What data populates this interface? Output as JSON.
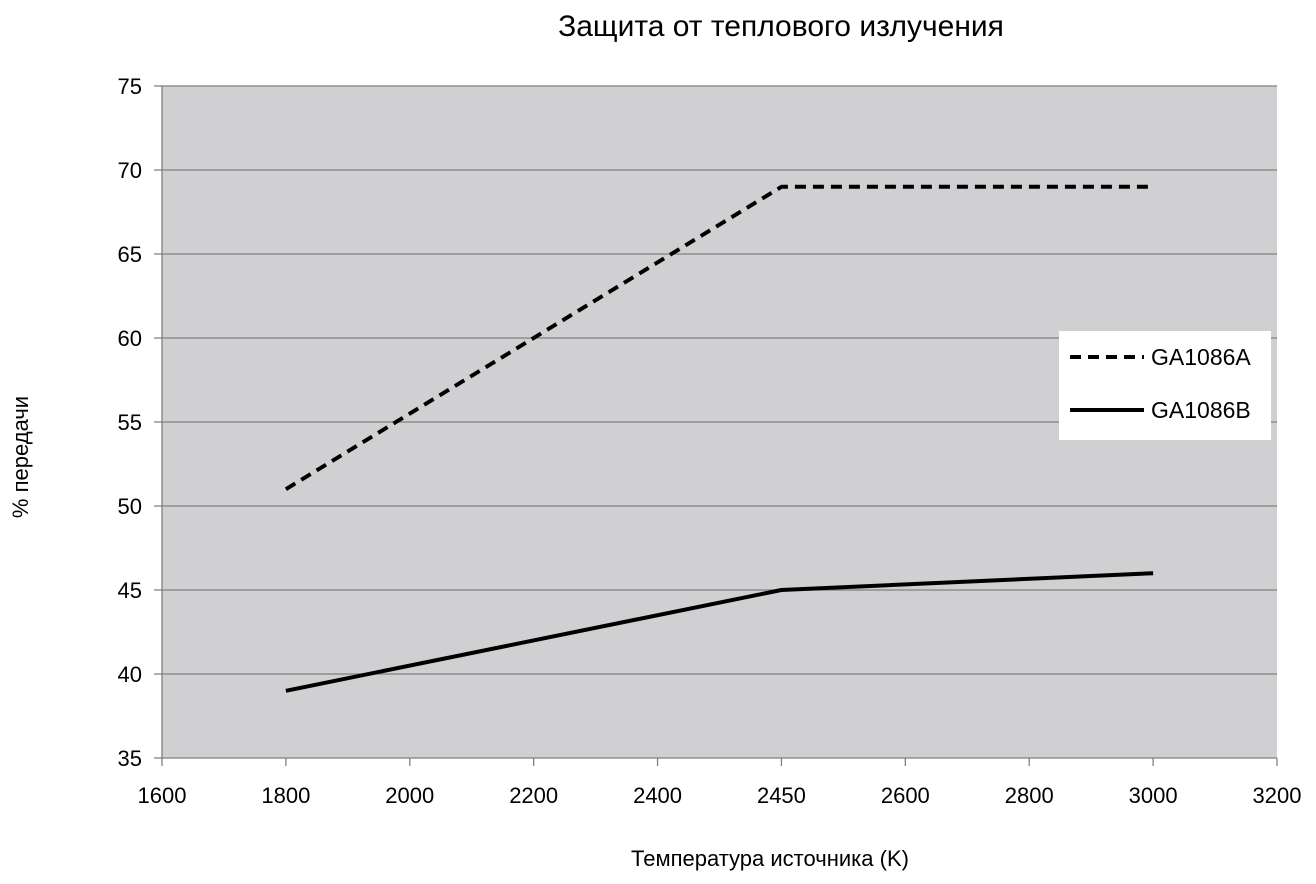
{
  "chart_data": {
    "type": "line",
    "title": "Защита от теплового излучения",
    "xlabel": "Температура источника (K)",
    "ylabel": "% передачи",
    "x_ticks": [
      "1600",
      "1800",
      "2000",
      "2200",
      "2400",
      "2450",
      "2600",
      "2800",
      "3000",
      "3200"
    ],
    "y_ticks": [
      "35",
      "40",
      "45",
      "50",
      "55",
      "60",
      "65",
      "70",
      "75"
    ],
    "ylim": [
      35,
      75
    ],
    "grid": true,
    "legend_position": "right",
    "series": [
      {
        "name": "GA1086A",
        "style": "dashed",
        "color": "#000000",
        "points": [
          {
            "x": "1800",
            "y": 51
          },
          {
            "x": "2450",
            "y": 69
          },
          {
            "x": "3000",
            "y": 69
          }
        ]
      },
      {
        "name": "GA1086B",
        "style": "solid",
        "color": "#000000",
        "points": [
          {
            "x": "1800",
            "y": 39
          },
          {
            "x": "2450",
            "y": 45
          },
          {
            "x": "3000",
            "y": 46
          }
        ]
      }
    ],
    "plot_background": "#d0d0d2",
    "grid_color": "#7f7f7f"
  }
}
